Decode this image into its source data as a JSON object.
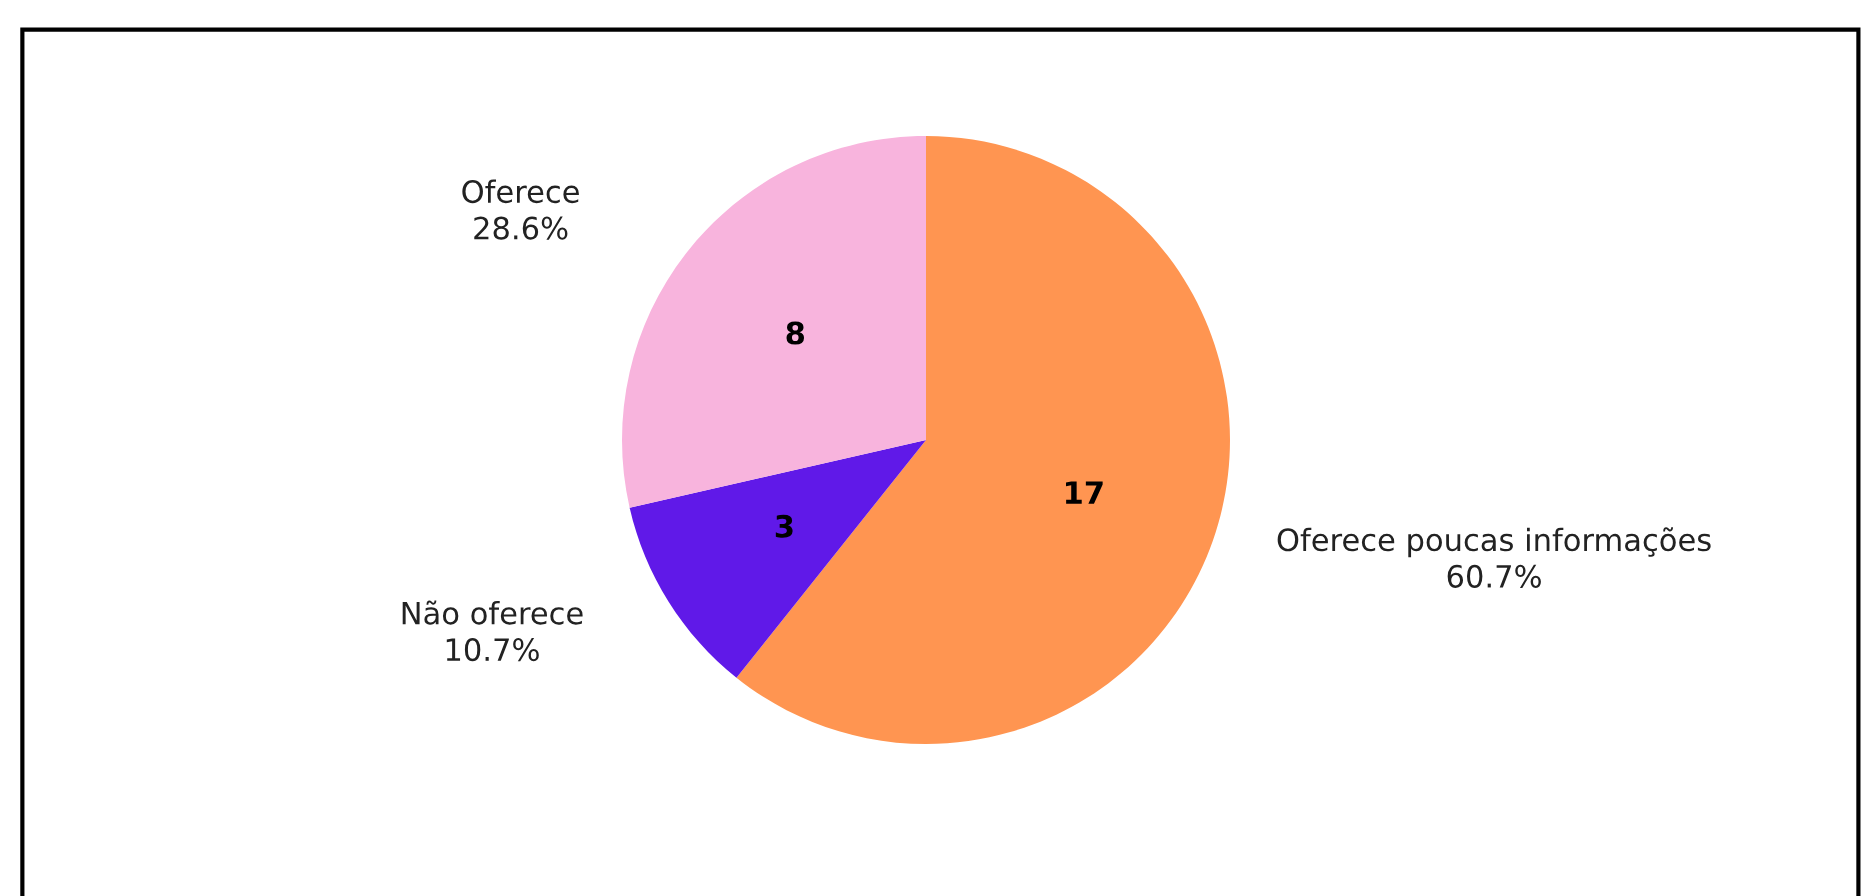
{
  "chart_data": {
    "type": "pie",
    "categories": [
      "Oferece poucas informações",
      "Não oferece",
      "Oferece"
    ],
    "values": [
      17,
      3,
      8
    ],
    "colors": [
      "#ff9551",
      "#6019e8",
      "#f8b4dd"
    ],
    "data_labels": true,
    "annotations": [
      "60.7%",
      "10.7%",
      "28.6%"
    ]
  }
}
